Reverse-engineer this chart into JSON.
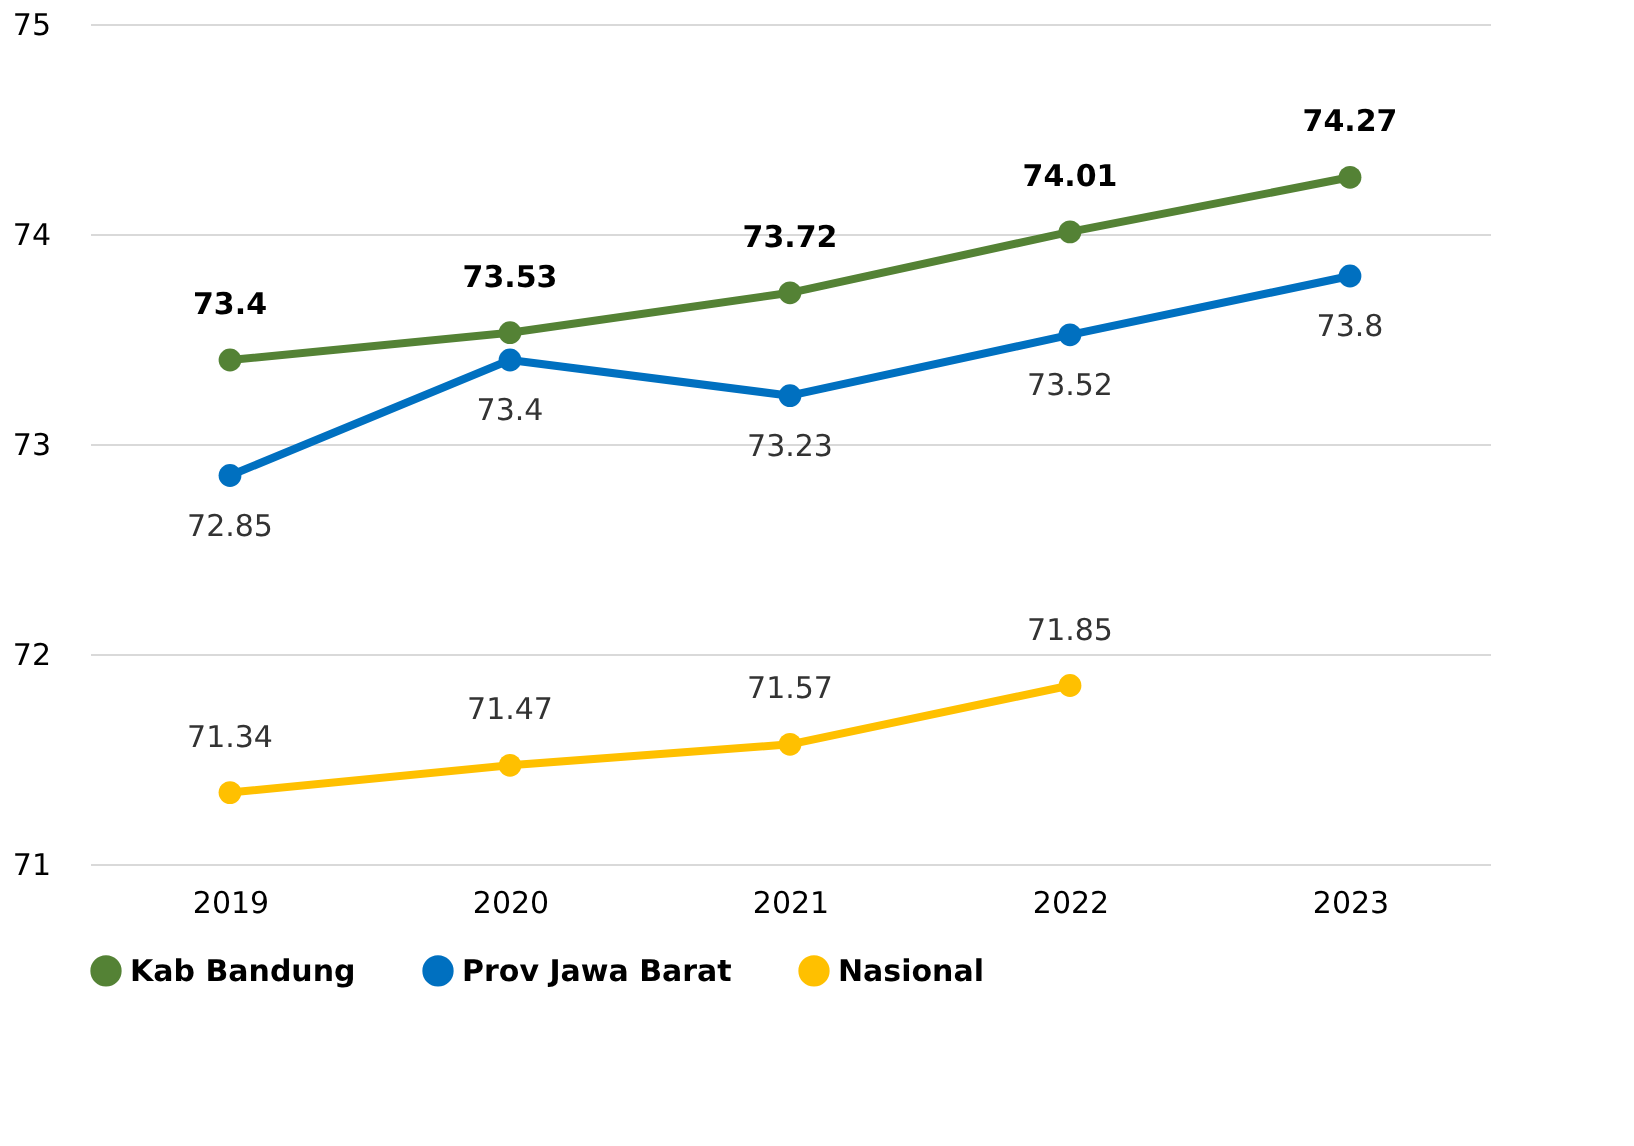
{
  "chart_data": {
    "type": "line",
    "categories": [
      "2019",
      "2020",
      "2021",
      "2022",
      "2023"
    ],
    "series": [
      {
        "name": "Kab Bandung",
        "color": "#548235",
        "values": [
          73.4,
          73.53,
          73.72,
          74.01,
          74.27
        ]
      },
      {
        "name": "Prov Jawa Barat",
        "color": "#0070c0",
        "values": [
          72.85,
          73.4,
          73.23,
          73.52,
          73.8
        ]
      },
      {
        "name": "Nasional",
        "color": "#ffc000",
        "values": [
          71.34,
          71.47,
          71.57,
          71.85,
          null
        ]
      }
    ],
    "ylim": [
      71,
      75
    ],
    "yticks": [
      71,
      72,
      73,
      74,
      75
    ],
    "grid": "y",
    "legend": "bottom",
    "marker": "circle",
    "line_style": "solid",
    "data_labels": true
  }
}
